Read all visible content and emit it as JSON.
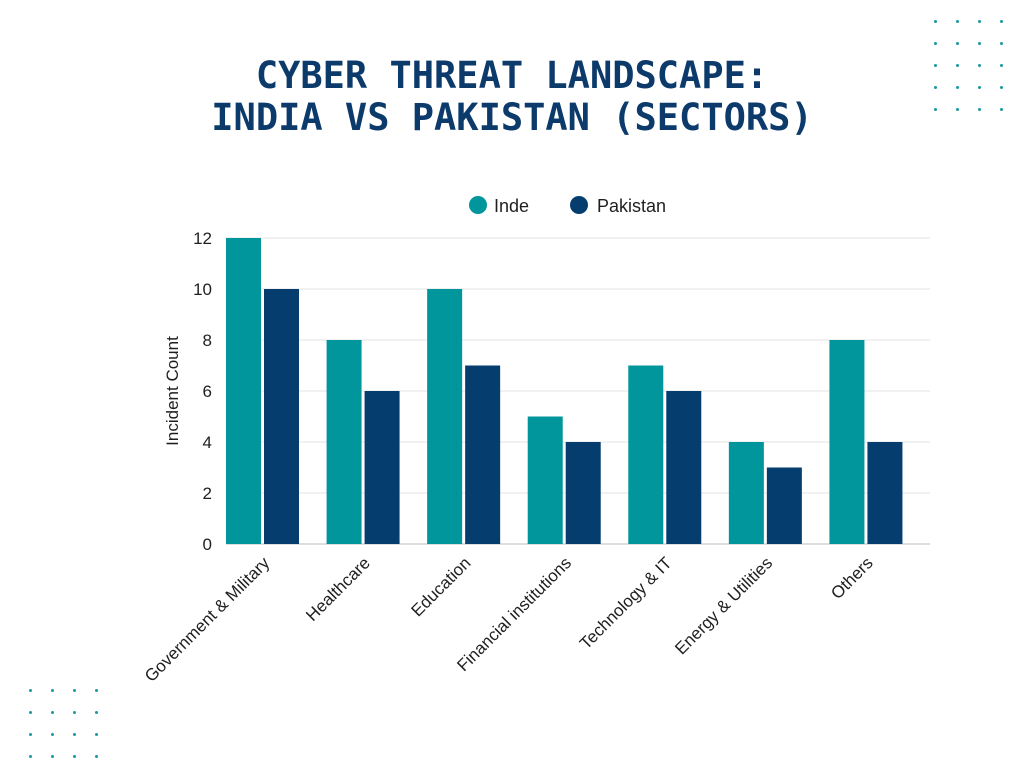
{
  "title_line1": "CYBER THREAT LANDSCAPE:",
  "title_line2": "INDIA VS PAKISTAN (SECTORS)",
  "colors": {
    "title": "#0b3a6b",
    "dots": "#1a9aa0"
  },
  "chart_data": {
    "type": "bar",
    "title": "CYBER THREAT LANDSCAPE: INDIA VS PAKISTAN (SECTORS)",
    "xlabel": "",
    "ylabel": "Incident Count",
    "ylim": [
      0,
      12
    ],
    "yticks": [
      0,
      2,
      4,
      6,
      8,
      10,
      12
    ],
    "grid": true,
    "legend": "top-center",
    "categories": [
      "Government & Military",
      "Healthcare",
      "Education",
      "Financial institutions",
      "Technology & IT",
      "Energy & Utilities",
      "Others"
    ],
    "series": [
      {
        "name": "Inde",
        "color": "#00969b",
        "values": [
          12,
          8,
          10,
          5,
          7,
          4,
          8
        ]
      },
      {
        "name": "Pakistan",
        "color": "#053d6f",
        "values": [
          10,
          6,
          7,
          4,
          6,
          3,
          4
        ]
      }
    ]
  }
}
